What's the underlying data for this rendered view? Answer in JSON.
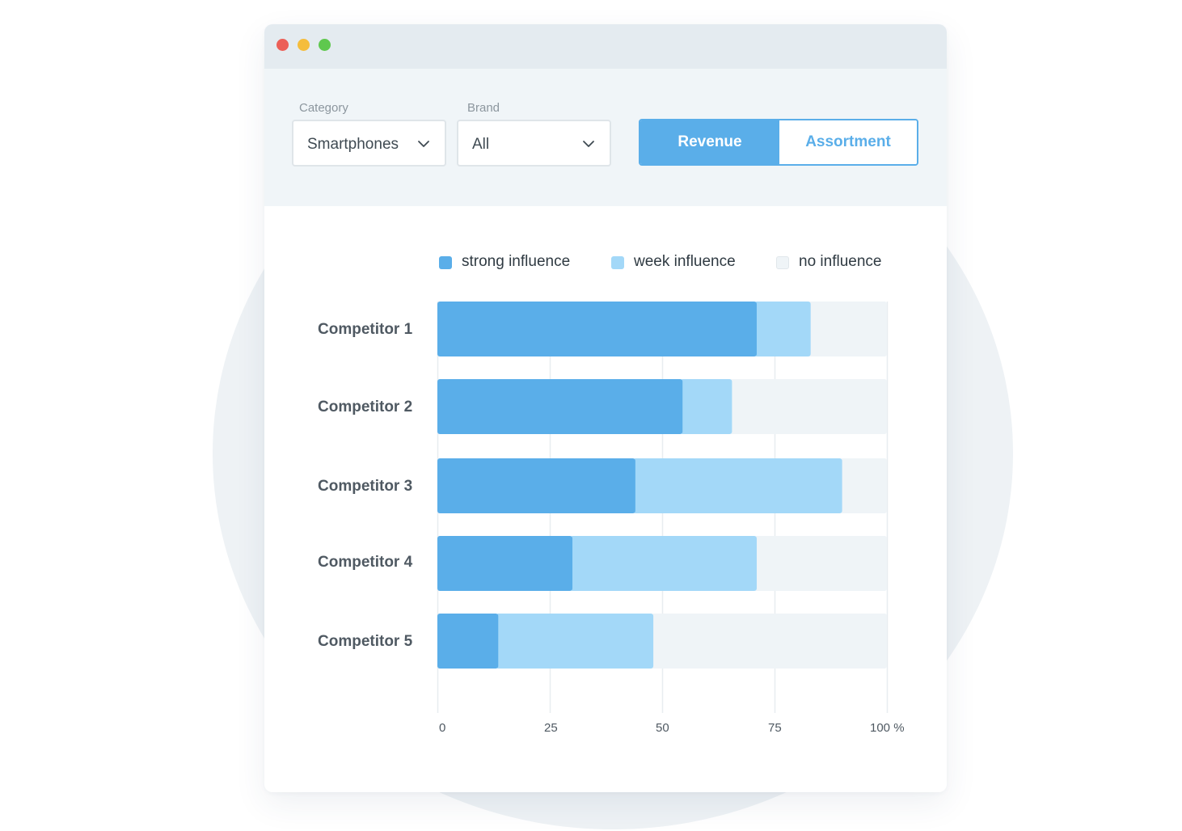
{
  "window": {
    "controls": [
      "close",
      "minimize",
      "maximize"
    ],
    "control_colors": [
      "#ec5f57",
      "#f5bd3c",
      "#5fc84e"
    ]
  },
  "filters": {
    "category": {
      "label": "Category",
      "value": "Smartphones"
    },
    "brand": {
      "label": "Brand",
      "value": "All"
    },
    "view_toggle": {
      "active": "Revenue",
      "inactive": "Assortment"
    }
  },
  "colors": {
    "strong": "#5aaee9",
    "week": "#a3d8f8",
    "none": "#eff4f7",
    "grid": "#e8edf0"
  },
  "chart_data": {
    "type": "bar",
    "orientation": "horizontal",
    "stacked": true,
    "categories": [
      "Competitor 1",
      "Competitor 2",
      "Competitor 3",
      "Competitor 4",
      "Competitor 5"
    ],
    "series": [
      {
        "name": "strong influence",
        "values": [
          70.5,
          54,
          43.5,
          29.5,
          13
        ]
      },
      {
        "name": "week influence",
        "values": [
          12,
          11,
          46,
          41,
          34.5
        ]
      },
      {
        "name": "no influence",
        "values": [
          17.5,
          35,
          10.5,
          29.5,
          52.5
        ]
      }
    ],
    "xlim": [
      0,
      100
    ],
    "ticks": [
      "0",
      "25",
      "50",
      "75",
      "100 %"
    ],
    "legend_position": "top",
    "grid": true
  }
}
